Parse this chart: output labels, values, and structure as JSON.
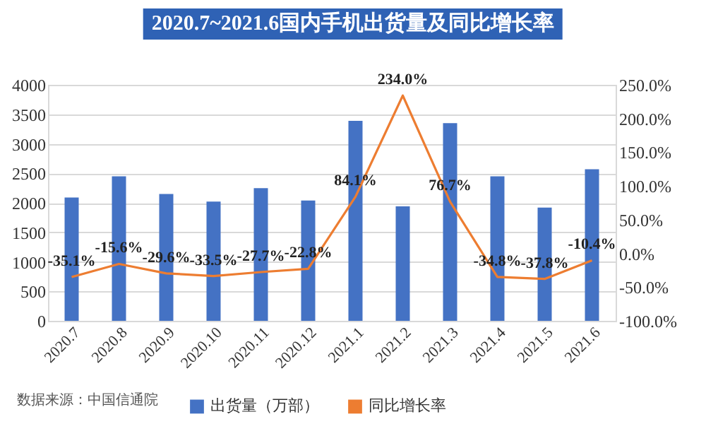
{
  "chart_data": {
    "type": "bar",
    "title": "2020.7~2021.6国内手机出货量及同比增长率",
    "categories": [
      "2020.7",
      "2020.8",
      "2020.9",
      "2020.10",
      "2020.11",
      "2020.12",
      "2021.1",
      "2021.2",
      "2021.3",
      "2021.4",
      "2021.5",
      "2021.6"
    ],
    "series": [
      {
        "name": "出货量（万部）",
        "color": "#4472c4",
        "values": [
          2090,
          2450,
          2150,
          2020,
          2250,
          2040,
          3390,
          1940,
          3350,
          2450,
          1920,
          2570
        ]
      },
      {
        "name": "同比增长率",
        "type": "line",
        "axis": "y2",
        "color": "#ed7d31",
        "values": [
          -35.1,
          -15.6,
          -29.6,
          -33.5,
          -27.7,
          -22.8,
          84.1,
          234.0,
          76.7,
          -34.8,
          -37.8,
          -10.4
        ],
        "value_labels": [
          "-35.1%",
          "-15.6%",
          "-29.6%",
          "-33.5%",
          "-27.7%",
          "-22.8%",
          "84.1%",
          "234.0%",
          "76.7%",
          "-34.8%",
          "-37.8%",
          "-10.4%"
        ]
      }
    ],
    "ylim": [
      0,
      4000
    ],
    "yticks": [
      0,
      500,
      1000,
      1500,
      2000,
      2500,
      3000,
      3500,
      4000
    ],
    "y2lim": [
      -100,
      250
    ],
    "y2ticks": [
      {
        "value": -100,
        "label": "-100.0%"
      },
      {
        "value": -50,
        "label": "-50.0%"
      },
      {
        "value": 0,
        "label": "0.0%"
      },
      {
        "value": 50,
        "label": "50.0%"
      },
      {
        "value": 100,
        "label": "100.0%"
      },
      {
        "value": 150,
        "label": "150.0%"
      },
      {
        "value": 200,
        "label": "200.0%"
      },
      {
        "value": 250,
        "label": "250.0%"
      }
    ],
    "grid": "y",
    "legend": "bottom",
    "annotations": [
      "数据来源：中国信通院"
    ]
  }
}
